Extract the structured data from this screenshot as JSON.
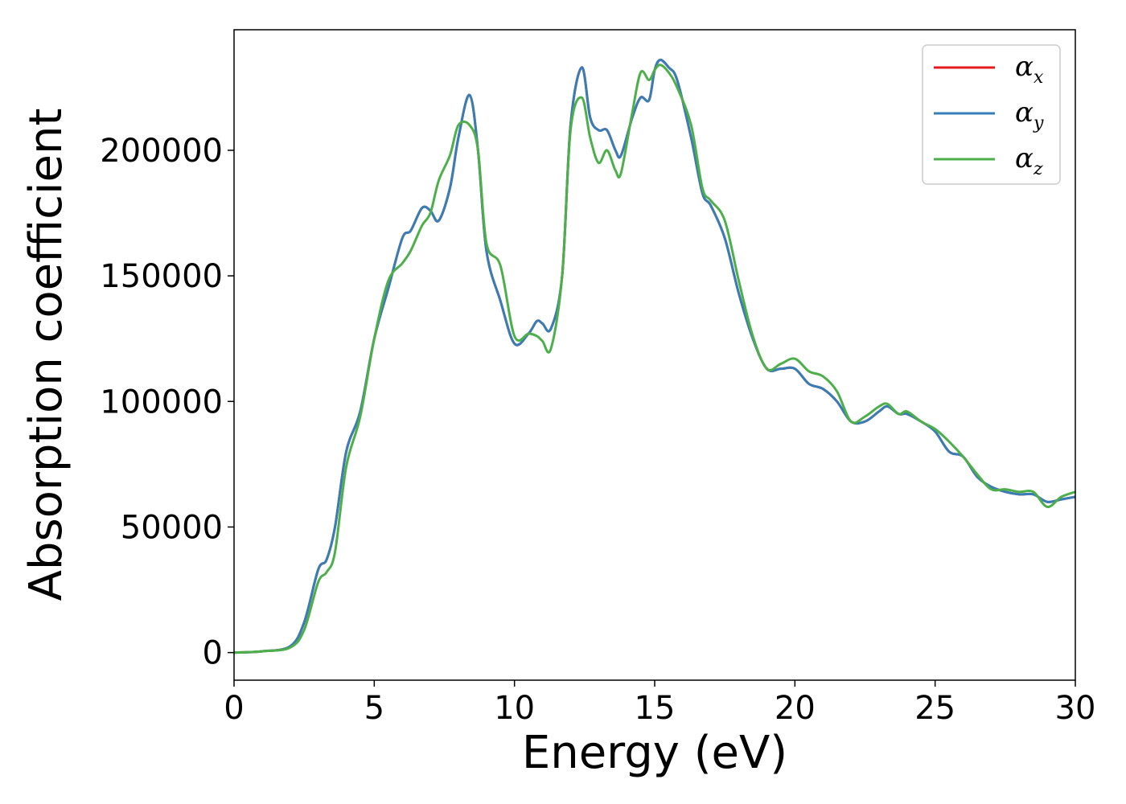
{
  "chart_data": {
    "type": "line",
    "title": "",
    "xlabel": "Energy (eV)",
    "ylabel": "Absorption coefficient",
    "xlim": [
      0,
      30
    ],
    "ylim": [
      -11000,
      248000
    ],
    "xticks": [
      0,
      5,
      10,
      15,
      20,
      25,
      30
    ],
    "yticks": [
      0,
      50000,
      100000,
      150000,
      200000
    ],
    "grid": false,
    "legend_position": "top-right",
    "series": [
      {
        "name": "α",
        "subscript": "x",
        "color": "#e41a1c",
        "x": [
          0,
          1,
          2,
          2.5,
          3,
          3.3,
          3.6,
          4,
          4.5,
          5,
          5.5,
          6,
          6.3,
          6.7,
          7,
          7.3,
          7.7,
          8,
          8.4,
          8.7,
          9,
          9.5,
          10,
          10.5,
          10.8,
          11,
          11.3,
          11.7,
          12,
          12.4,
          12.7,
          13,
          13.3,
          13.6,
          13.8,
          14.2,
          14.5,
          14.8,
          15,
          15.2,
          15.5,
          15.8,
          16.3,
          16.7,
          17,
          17.5,
          18,
          18.5,
          19,
          19.5,
          20,
          20.5,
          21,
          21.5,
          22,
          22.5,
          23,
          23.3,
          23.7,
          24,
          24.5,
          25,
          25.5,
          26,
          26.5,
          27,
          27.5,
          28,
          28.5,
          29,
          29.5,
          30
        ],
        "y": [
          0,
          500,
          2500,
          12000,
          33000,
          37000,
          50000,
          80000,
          96000,
          125000,
          145000,
          165000,
          168000,
          177000,
          176000,
          172000,
          185000,
          205000,
          222000,
          200000,
          160000,
          140000,
          123000,
          127000,
          132000,
          131000,
          129000,
          150000,
          210000,
          233000,
          213000,
          208000,
          208000,
          200000,
          198000,
          213000,
          221000,
          220000,
          232000,
          236000,
          233000,
          228000,
          205000,
          183000,
          178000,
          165000,
          143000,
          125000,
          113000,
          113000,
          113000,
          107000,
          105000,
          100000,
          92000,
          92000,
          96000,
          98000,
          95000,
          95000,
          92000,
          88000,
          80000,
          78000,
          70000,
          66000,
          64000,
          63000,
          63000,
          60000,
          61000,
          62000
        ]
      },
      {
        "name": "α",
        "subscript": "y",
        "color": "#377eb8",
        "x": [
          0,
          1,
          2,
          2.5,
          3,
          3.3,
          3.6,
          4,
          4.5,
          5,
          5.5,
          6,
          6.3,
          6.7,
          7,
          7.3,
          7.7,
          8,
          8.4,
          8.7,
          9,
          9.5,
          10,
          10.5,
          10.8,
          11,
          11.3,
          11.7,
          12,
          12.4,
          12.7,
          13,
          13.3,
          13.6,
          13.8,
          14.2,
          14.5,
          14.8,
          15,
          15.2,
          15.5,
          15.8,
          16.3,
          16.7,
          17,
          17.5,
          18,
          18.5,
          19,
          19.5,
          20,
          20.5,
          21,
          21.5,
          22,
          22.5,
          23,
          23.3,
          23.7,
          24,
          24.5,
          25,
          25.5,
          26,
          26.5,
          27,
          27.5,
          28,
          28.5,
          29,
          29.5,
          30
        ],
        "y": [
          0,
          500,
          2500,
          12000,
          33000,
          37000,
          50000,
          80000,
          96000,
          125000,
          145000,
          165000,
          168000,
          177000,
          176000,
          172000,
          185000,
          205000,
          222000,
          200000,
          160000,
          140000,
          123000,
          127000,
          132000,
          131000,
          129000,
          150000,
          210000,
          233000,
          213000,
          208000,
          208000,
          200000,
          198000,
          213000,
          221000,
          220000,
          232000,
          236000,
          233000,
          228000,
          205000,
          183000,
          178000,
          165000,
          143000,
          125000,
          113000,
          113000,
          113000,
          107000,
          105000,
          100000,
          92000,
          92000,
          96000,
          98000,
          95000,
          95000,
          92000,
          88000,
          80000,
          78000,
          70000,
          66000,
          64000,
          63000,
          63000,
          60000,
          61000,
          62000
        ]
      },
      {
        "name": "α",
        "subscript": "z",
        "color": "#4daf4a",
        "x": [
          0,
          1,
          2,
          2.5,
          3,
          3.3,
          3.6,
          4,
          4.5,
          5,
          5.5,
          6,
          6.3,
          6.7,
          7,
          7.3,
          7.7,
          8,
          8.4,
          8.7,
          9,
          9.5,
          10,
          10.5,
          10.8,
          11,
          11.3,
          11.7,
          12,
          12.4,
          12.7,
          13,
          13.3,
          13.6,
          13.8,
          14.2,
          14.5,
          14.8,
          15,
          15.2,
          15.5,
          15.8,
          16.3,
          16.7,
          17,
          17.5,
          18,
          18.5,
          19,
          19.5,
          20,
          20.5,
          21,
          21.5,
          22,
          22.5,
          23,
          23.3,
          23.7,
          24,
          24.5,
          25,
          25.5,
          26,
          26.5,
          27,
          27.5,
          28,
          28.5,
          29,
          29.5,
          30
        ],
        "y": [
          0,
          500,
          2000,
          9000,
          28000,
          32000,
          40000,
          74000,
          94000,
          125000,
          148000,
          155000,
          160000,
          170000,
          175000,
          188000,
          198000,
          210000,
          210000,
          200000,
          163000,
          154000,
          126000,
          127000,
          126000,
          124000,
          121000,
          150000,
          208000,
          221000,
          205000,
          195000,
          200000,
          192000,
          191000,
          215000,
          231000,
          228000,
          232000,
          234000,
          231000,
          225000,
          210000,
          185000,
          180000,
          172000,
          148000,
          126000,
          113000,
          115000,
          117000,
          112000,
          110000,
          104000,
          92000,
          94000,
          98000,
          99000,
          95000,
          96000,
          92000,
          89000,
          84000,
          78000,
          71000,
          65000,
          65000,
          64000,
          64000,
          58000,
          62000,
          64000
        ]
      }
    ]
  }
}
